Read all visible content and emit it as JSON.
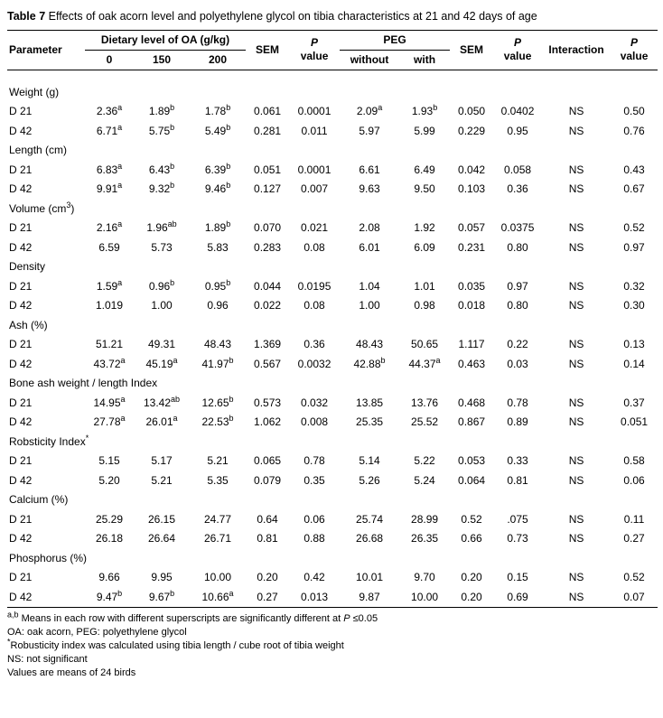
{
  "title": {
    "bold": "Table 7",
    "rest": " Effects of oak acorn level and polyethylene glycol on tibia characteristics at 21 and 42 days of age"
  },
  "table": {
    "headers": {
      "parameter": "Parameter",
      "oa_group": "Dietary level of OA (g/kg)",
      "oa_sub": [
        "0",
        "150",
        "200"
      ],
      "sem": "SEM",
      "p_line1": "P",
      "p_line2": "value",
      "peg_group": "PEG",
      "peg_sub": [
        "without",
        "with"
      ],
      "interaction": "Interaction"
    },
    "sections": [
      {
        "name": "Weight (g)",
        "rows": [
          {
            "label": "D 21",
            "cells": [
              "2.36^{a}",
              "1.89^{b}",
              "1.78^{b}",
              "0.061",
              "0.0001",
              "2.09^{a}",
              "1.93^{b}",
              "0.050",
              "0.0402",
              "NS",
              "0.50"
            ]
          },
          {
            "label": "D 42",
            "cells": [
              "6.71^{a}",
              "5.75^{b}",
              "5.49^{b}",
              "0.281",
              "0.011",
              "5.97",
              "5.99",
              "0.229",
              "0.95",
              "NS",
              "0.76"
            ]
          }
        ]
      },
      {
        "name": "Length (cm)",
        "rows": [
          {
            "label": "D 21",
            "cells": [
              "6.83^{a}",
              "6.43^{b}",
              "6.39^{b}",
              "0.051",
              "0.0001",
              "6.61",
              "6.49",
              "0.042",
              "0.058",
              "NS",
              "0.43"
            ]
          },
          {
            "label": "D 42",
            "cells": [
              "9.91^{a}",
              "9.32^{b}",
              "9.46^{b}",
              "0.127",
              "0.007",
              "9.63",
              "9.50",
              "0.103",
              "0.36",
              "NS",
              "0.67"
            ]
          }
        ]
      },
      {
        "name": "Volume (cm^{3})",
        "rows": [
          {
            "label": "D 21",
            "cells": [
              "2.16^{a}",
              "1.96^{ab}",
              "1.89^{b}",
              "0.070",
              "0.021",
              "2.08",
              "1.92",
              "0.057",
              "0.0375",
              "NS",
              "0.52"
            ]
          },
          {
            "label": "D 42",
            "cells": [
              "6.59",
              "5.73",
              "5.83",
              "0.283",
              "0.08",
              "6.01",
              "6.09",
              "0.231",
              "0.80",
              "NS",
              "0.97"
            ]
          }
        ]
      },
      {
        "name": "Density",
        "rows": [
          {
            "label": "D 21",
            "cells": [
              "1.59^{a}",
              "0.96^{b}",
              "0.95^{b}",
              "0.044",
              "0.0195",
              "1.04",
              "1.01",
              "0.035",
              "0.97",
              "NS",
              "0.32"
            ]
          },
          {
            "label": "D 42",
            "cells": [
              "1.019",
              "1.00",
              "0.96",
              "0.022",
              "0.08",
              "1.00",
              "0.98",
              "0.018",
              "0.80",
              "NS",
              "0.30"
            ]
          }
        ]
      },
      {
        "name": "Ash (%)",
        "rows": [
          {
            "label": "D 21",
            "cells": [
              "51.21",
              "49.31",
              "48.43",
              "1.369",
              "0.36",
              "48.43",
              "50.65",
              "1.117",
              "0.22",
              "NS",
              "0.13"
            ]
          },
          {
            "label": "D 42",
            "cells": [
              "43.72^{a}",
              "45.19^{a}",
              "41.97^{b}",
              "0.567",
              "0.0032",
              "42.88^{b}",
              "44.37^{a}",
              "0.463",
              "0.03",
              "NS",
              "0.14"
            ]
          }
        ]
      },
      {
        "name": "Bone ash weight / length Index",
        "rows": [
          {
            "label": "D 21",
            "cells": [
              "14.95^{a}",
              "13.42^{ab}",
              "12.65^{b}",
              "0.573",
              "0.032",
              "13.85",
              "13.76",
              "0.468",
              "0.78",
              "NS",
              "0.37"
            ]
          },
          {
            "label": "D 42",
            "cells": [
              "27.78^{a}",
              "26.01^{a}",
              "22.53^{b}",
              "1.062",
              "0.008",
              "25.35",
              "25.52",
              "0.867",
              "0.89",
              "NS",
              "0.051"
            ]
          }
        ]
      },
      {
        "name": "Robsticity Index^{*}",
        "rows": [
          {
            "label": "D 21",
            "cells": [
              "5.15",
              "5.17",
              "5.21",
              "0.065",
              "0.78",
              "5.14",
              "5.22",
              "0.053",
              "0.33",
              "NS",
              "0.58"
            ]
          },
          {
            "label": "D 42",
            "cells": [
              "5.20",
              "5.21",
              "5.35",
              "0.079",
              "0.35",
              "5.26",
              "5.24",
              "0.064",
              "0.81",
              "NS",
              "0.06"
            ]
          }
        ]
      },
      {
        "name": "Calcium (%)",
        "rows": [
          {
            "label": "D 21",
            "cells": [
              "25.29",
              "26.15",
              "24.77",
              "0.64",
              "0.06",
              "25.74",
              "28.99",
              "0.52",
              ".075",
              "NS",
              "0.11"
            ]
          },
          {
            "label": "D 42",
            "cells": [
              "26.18",
              "26.64",
              "26.71",
              "0.81",
              "0.88",
              "26.68",
              "26.35",
              "0.66",
              "0.73",
              "NS",
              "0.27"
            ]
          }
        ]
      },
      {
        "name": "Phosphorus (%)",
        "rows": [
          {
            "label": "D 21",
            "cells": [
              "9.66",
              "9.95",
              "10.00",
              "0.20",
              "0.42",
              "10.01",
              "9.70",
              "0.20",
              "0.15",
              "NS",
              "0.52"
            ]
          },
          {
            "label": "D 42",
            "cells": [
              "9.47^{b}",
              "9.67^{b}",
              "10.66^{a}",
              "0.27",
              "0.013",
              "9.87",
              "10.00",
              "0.20",
              "0.69",
              "NS",
              "0.07"
            ]
          }
        ]
      }
    ]
  },
  "footnotes": [
    "^{a,b} Means in each row with different superscripts are significantly different at ~{P} ≤0.05",
    "OA: oak acorn, PEG: polyethylene glycol",
    "^{*}Robusticity index was calculated using tibia length / cube root of tibia weight",
    "NS: not significant",
    "Values are means of 24 birds"
  ]
}
